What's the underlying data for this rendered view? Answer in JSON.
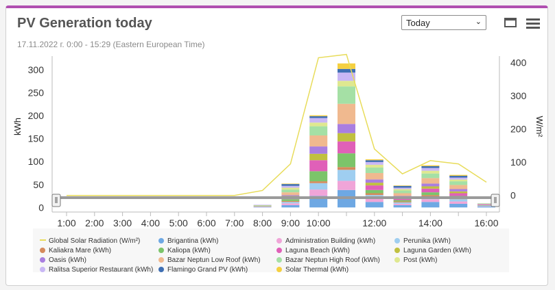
{
  "header": {
    "title": "PV Generation today",
    "subtitle": "17.11.2022 г. 0:00 - 15:29 (Eastern European Time)",
    "period_select": "Today"
  },
  "icons": {
    "window": "window-icon",
    "menu": "hamburger-menu-icon"
  },
  "chart_data": {
    "type": "bar",
    "stacked": true,
    "categories": [
      "1:00",
      "2:00",
      "3:00",
      "4:00",
      "5:00",
      "6:00",
      "7:00",
      "8:00",
      "9:00",
      "10:00",
      "11:00",
      "12:00",
      "13:00",
      "14:00",
      "15:00",
      "16:00"
    ],
    "x_tick_labels": [
      "1:00",
      "2:00",
      "3:00",
      "4:00",
      "5:00",
      "6:00",
      "7:00",
      "8:00",
      "9:00",
      "10:00",
      "12:00",
      "14:00",
      "16:00"
    ],
    "ylabel": "kWh",
    "ylabel_right": "W/m²",
    "ylim": [
      -10,
      330
    ],
    "yticks": [
      0,
      50,
      100,
      150,
      200,
      250,
      300
    ],
    "ylim_right": [
      -50,
      420
    ],
    "yticks_right": [
      0,
      100,
      200,
      300,
      400
    ],
    "line_series": {
      "name": "Global Solar Radiation (W/m²)",
      "color": "#e8dc5a",
      "values": [
        0,
        0,
        0,
        0,
        0,
        0,
        0,
        15,
        95,
        415,
        425,
        140,
        65,
        105,
        95,
        40
      ]
    },
    "series": [
      {
        "name": "Brigantina (kWh)",
        "color": "#6ea8e3",
        "values": [
          0,
          0,
          0,
          0,
          0,
          0,
          0,
          1,
          5,
          25,
          38,
          12,
          5,
          12,
          8,
          2
        ]
      },
      {
        "name": "Administration Building (kWh)",
        "color": "#f0a5d8",
        "values": [
          0,
          0,
          0,
          0,
          0,
          0,
          0,
          1,
          4,
          14,
          20,
          7,
          3,
          6,
          5,
          1
        ]
      },
      {
        "name": "Perunika (kWh)",
        "color": "#9fcef0",
        "values": [
          0,
          0,
          0,
          0,
          0,
          0,
          0,
          0,
          3,
          14,
          24,
          8,
          3,
          6,
          5,
          1
        ]
      },
      {
        "name": "Kaliakra Mare (kWh)",
        "color": "#d58a5c",
        "values": [
          0,
          0,
          0,
          0,
          0,
          0,
          0,
          0,
          2,
          4,
          6,
          4,
          2,
          3,
          2,
          0
        ]
      },
      {
        "name": "Kaliopa (kWh)",
        "color": "#7cc46a",
        "values": [
          0,
          0,
          0,
          0,
          0,
          0,
          0,
          1,
          4,
          22,
          30,
          7,
          3,
          6,
          5,
          1
        ]
      },
      {
        "name": "Laguna Beach (kWh)",
        "color": "#e060b8",
        "values": [
          0,
          0,
          0,
          0,
          0,
          0,
          0,
          0,
          4,
          24,
          26,
          10,
          4,
          8,
          6,
          1
        ]
      },
      {
        "name": "Laguna Garden (kWh)",
        "color": "#c0c040",
        "values": [
          0,
          0,
          0,
          0,
          0,
          0,
          0,
          0,
          3,
          14,
          18,
          6,
          2,
          5,
          4,
          0
        ]
      },
      {
        "name": "Oasis (kWh)",
        "color": "#a97ee0",
        "values": [
          0,
          0,
          0,
          0,
          0,
          0,
          0,
          0,
          2,
          16,
          20,
          7,
          3,
          6,
          5,
          1
        ]
      },
      {
        "name": "Bazar Neptun Low Roof (kWh)",
        "color": "#f0b98f",
        "values": [
          0,
          0,
          0,
          0,
          0,
          0,
          0,
          1,
          6,
          24,
          44,
          14,
          6,
          12,
          9,
          1
        ]
      },
      {
        "name": "Bazar Neptun High Roof (kWh)",
        "color": "#a5e0a5",
        "values": [
          0,
          0,
          0,
          0,
          0,
          0,
          0,
          1,
          6,
          20,
          38,
          12,
          6,
          10,
          8,
          1
        ]
      },
      {
        "name": "Post (kWh)",
        "color": "#dfe890",
        "values": [
          0,
          0,
          0,
          0,
          0,
          0,
          0,
          0,
          4,
          8,
          12,
          6,
          3,
          6,
          4,
          0
        ]
      },
      {
        "name": "Ralitsa Superior Restaurant (kWh)",
        "color": "#c9b7f5",
        "values": [
          0,
          0,
          0,
          0,
          0,
          0,
          0,
          1,
          4,
          10,
          18,
          6,
          3,
          6,
          4,
          0
        ]
      },
      {
        "name": "Flamingo Grand PV (kWh)",
        "color": "#3f6fb3",
        "values": [
          0,
          0,
          0,
          0,
          0,
          0,
          0,
          0,
          4,
          4,
          8,
          4,
          4,
          4,
          4,
          0
        ]
      },
      {
        "name": "Solar Thermal (kWh)",
        "color": "#f5d040",
        "values": [
          0,
          0,
          0,
          0,
          0,
          0,
          0,
          0,
          1,
          2,
          12,
          2,
          1,
          2,
          2,
          0
        ]
      }
    ]
  }
}
